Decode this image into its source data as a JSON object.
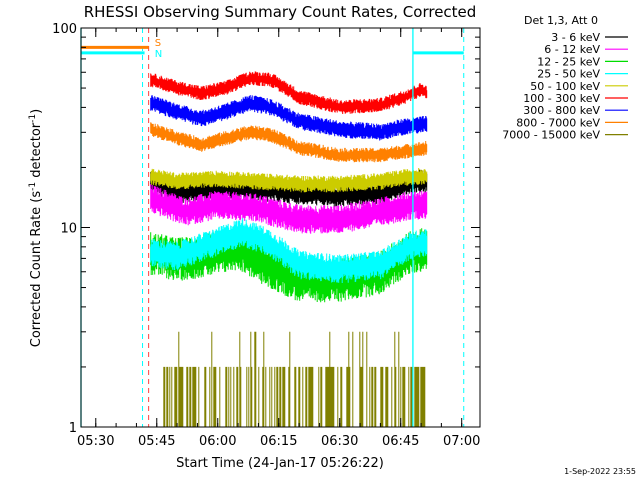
{
  "chart_data": {
    "type": "line",
    "title": "RHESSI Observing Summary Count Rates, Corrected",
    "xlabel": "Start Time (24-Jan-17 05:26:22)",
    "ylabel_main": "Corrected Count Rate (s",
    "ylabel_sup1": "-1",
    "ylabel_mid": " detector",
    "ylabel_sup2": "-1",
    "ylabel_end": ")",
    "date_stamp": "1-Sep-2022 23:55",
    "legend_header": "Det 1,3, Att 0",
    "y_scale": "log",
    "ylim": [
      1,
      100
    ],
    "xlim": [
      "05:26:22",
      "07:04:30"
    ],
    "xticks": [
      "05:30",
      "05:45",
      "06:00",
      "06:15",
      "06:30",
      "06:45",
      "07:00"
    ],
    "yticks": [
      "1",
      "10",
      "100"
    ],
    "series": [
      {
        "name": "3 - 6 keV",
        "color": "#000000",
        "start": "05:43:30",
        "end": "06:51:30",
        "base": 17,
        "noise": 0.1,
        "knots": [
          [
            "05:43:30",
            17
          ],
          [
            "05:50",
            15
          ],
          [
            "06:00",
            16
          ],
          [
            "06:10",
            15.5
          ],
          [
            "06:20",
            15
          ],
          [
            "06:30",
            14.5
          ],
          [
            "06:40",
            15
          ],
          [
            "06:48",
            17
          ],
          [
            "06:51:30",
            17
          ]
        ]
      },
      {
        "name": "6 - 12 keV",
        "color": "#ff00ff",
        "start": "05:43:30",
        "end": "06:51:30",
        "base": 13,
        "noise": 0.12,
        "knots": [
          [
            "05:43:30",
            14
          ],
          [
            "05:52",
            12
          ],
          [
            "06:00",
            13
          ],
          [
            "06:10",
            12.5
          ],
          [
            "06:20",
            11
          ],
          [
            "06:30",
            11
          ],
          [
            "06:40",
            12
          ],
          [
            "06:48",
            13
          ],
          [
            "06:51:30",
            13
          ]
        ]
      },
      {
        "name": "12 - 25 keV",
        "color": "#00dd00",
        "start": "05:43:30",
        "end": "06:51:30",
        "base": 7,
        "noise": 0.18,
        "knots": [
          [
            "05:43:30",
            7.5
          ],
          [
            "05:50",
            7
          ],
          [
            "06:00",
            7.5
          ],
          [
            "06:05",
            8
          ],
          [
            "06:12",
            6.5
          ],
          [
            "06:20",
            5.5
          ],
          [
            "06:30",
            5.5
          ],
          [
            "06:40",
            6
          ],
          [
            "06:47",
            7.5
          ],
          [
            "06:51:30",
            8
          ]
        ]
      },
      {
        "name": "25 - 50 keV",
        "color": "#00ffff",
        "start": "05:43:30",
        "end": "06:51:30",
        "base": 7,
        "noise": 0.12,
        "knots": [
          [
            "05:43:30",
            7.5
          ],
          [
            "05:50",
            7.2
          ],
          [
            "06:00",
            8.5
          ],
          [
            "06:06",
            9.5
          ],
          [
            "06:12",
            8.5
          ],
          [
            "06:20",
            6.5
          ],
          [
            "06:30",
            6.2
          ],
          [
            "06:40",
            6.5
          ],
          [
            "06:47",
            8
          ],
          [
            "06:51:30",
            8.5
          ]
        ]
      },
      {
        "name": "50 - 100 keV",
        "color": "#cccc00",
        "start": "05:43:30",
        "end": "06:51:30",
        "base": 17,
        "noise": 0.07,
        "knots": [
          [
            "05:43:30",
            18
          ],
          [
            "05:50",
            17
          ],
          [
            "06:00",
            17.5
          ],
          [
            "06:10",
            17
          ],
          [
            "06:20",
            16.5
          ],
          [
            "06:30",
            16.5
          ],
          [
            "06:40",
            17
          ],
          [
            "06:48",
            18
          ],
          [
            "06:51:30",
            18
          ]
        ]
      },
      {
        "name": "100 - 300 keV",
        "color": "#ff0000",
        "start": "05:43:30",
        "end": "06:51:30",
        "base": 50,
        "noise": 0.06,
        "knots": [
          [
            "05:43:30",
            55
          ],
          [
            "05:50",
            50
          ],
          [
            "05:56",
            47
          ],
          [
            "06:02",
            50
          ],
          [
            "06:08",
            56
          ],
          [
            "06:13",
            55
          ],
          [
            "06:20",
            45
          ],
          [
            "06:30",
            40
          ],
          [
            "06:40",
            41
          ],
          [
            "06:46",
            45
          ],
          [
            "06:50",
            49
          ],
          [
            "06:51:30",
            47
          ]
        ]
      },
      {
        "name": "300 - 800 keV",
        "color": "#0000ff",
        "start": "05:43:30",
        "end": "06:51:30",
        "base": 38,
        "noise": 0.07,
        "knots": [
          [
            "05:43:30",
            42
          ],
          [
            "05:50",
            38
          ],
          [
            "05:56",
            35
          ],
          [
            "06:02",
            38
          ],
          [
            "06:08",
            42
          ],
          [
            "06:13",
            40
          ],
          [
            "06:20",
            34
          ],
          [
            "06:30",
            31
          ],
          [
            "06:40",
            30
          ],
          [
            "06:46",
            32
          ],
          [
            "06:51:30",
            33
          ]
        ]
      },
      {
        "name": "800 - 7000 keV",
        "color": "#ff8000",
        "start": "05:43:30",
        "end": "06:51:30",
        "base": 28,
        "noise": 0.06,
        "knots": [
          [
            "05:43:30",
            31
          ],
          [
            "05:50",
            28
          ],
          [
            "05:56",
            26
          ],
          [
            "06:02",
            28
          ],
          [
            "06:08",
            30
          ],
          [
            "06:13",
            29
          ],
          [
            "06:20",
            25
          ],
          [
            "06:30",
            23
          ],
          [
            "06:40",
            23
          ],
          [
            "06:46",
            24
          ],
          [
            "06:51:30",
            25
          ]
        ]
      },
      {
        "name": "7000 - 15000 keV",
        "color": "#808000",
        "start": "05:46",
        "end": "06:51:30",
        "sparse": true,
        "levels": [
          1,
          2,
          3
        ]
      }
    ],
    "markers": {
      "vlines": [
        {
          "time": "05:26:22",
          "color": "#00ffff",
          "style": "solid"
        },
        {
          "time": "05:41:30",
          "color": "#00ffff",
          "style": "dashed"
        },
        {
          "time": "05:43:00",
          "color": "#ff4040",
          "style": "dashed"
        },
        {
          "time": "06:48:00",
          "color": "#00ffff",
          "style": "solid"
        },
        {
          "time": "07:00:30",
          "color": "#00ffff",
          "style": "dashed"
        }
      ],
      "bars": [
        {
          "from": "05:26:22",
          "to": "05:42:00",
          "level": 75,
          "color": "#00ffff"
        },
        {
          "from": "05:26:22",
          "to": "05:43:00",
          "level": 80,
          "color": "#ff8000"
        },
        {
          "from": "06:48:00",
          "to": "07:00:30",
          "level": 75,
          "color": "#00ffff"
        }
      ],
      "labels": [
        {
          "text": "S",
          "time": "05:44:00",
          "level": 85,
          "color": "#ff8000"
        },
        {
          "text": "N",
          "time": "05:44:00",
          "level": 75,
          "color": "#00ffff"
        }
      ]
    }
  }
}
